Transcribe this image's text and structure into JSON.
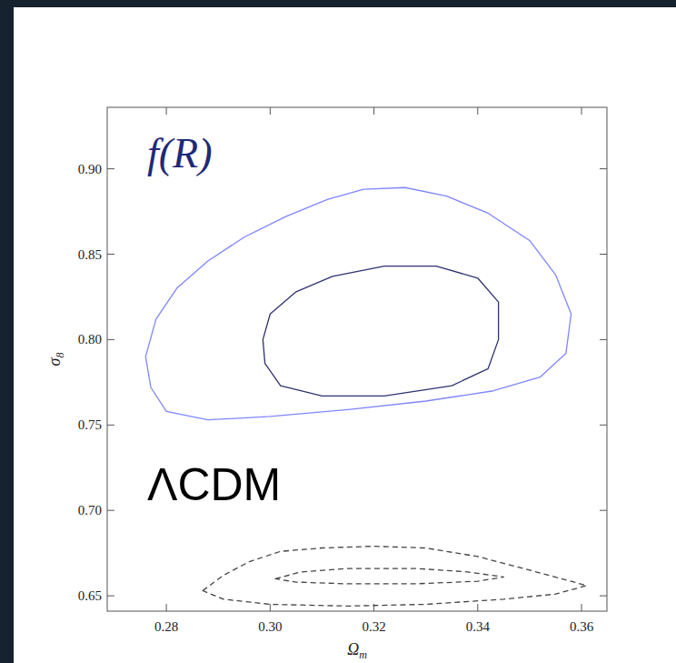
{
  "chart_data": {
    "type": "contour",
    "x_label": "Ωm",
    "y_label": "σ8",
    "xlim": [
      0.2686,
      0.3649
    ],
    "ylim": [
      0.641,
      0.936
    ],
    "xticks": [
      0.28,
      {
        "value": 0.3,
        "label": "0.30"
      },
      0.32,
      0.34,
      0.36
    ],
    "yticks": [
      0.65,
      {
        "value": 0.7,
        "label": "0.70"
      },
      0.75,
      {
        "value": 0.8,
        "label": "0.80"
      },
      0.85,
      {
        "value": 0.9,
        "label": "0.90"
      }
    ],
    "grid": false,
    "series": [
      {
        "name": "f(R)",
        "color": "#1e2a78",
        "line_style": "solid",
        "contours": [
          {
            "color": "#7f86ff",
            "x": [
              0.276,
              0.278,
              0.282,
              0.288,
              0.295,
              0.303,
              0.311,
              0.318,
              0.326,
              0.334,
              0.342,
              0.35,
              0.355,
              0.358,
              0.357,
              0.352,
              0.343,
              0.33,
              0.315,
              0.3,
              0.288,
              0.28,
              0.277
            ],
            "y": [
              0.79,
              0.812,
              0.83,
              0.846,
              0.86,
              0.872,
              0.882,
              0.888,
              0.889,
              0.884,
              0.874,
              0.858,
              0.838,
              0.815,
              0.792,
              0.778,
              0.77,
              0.764,
              0.759,
              0.755,
              0.753,
              0.758,
              0.772
            ]
          },
          {
            "color": "#2f3270",
            "x": [
              0.2986,
              0.3,
              0.305,
              0.312,
              0.322,
              0.332,
              0.34,
              0.344,
              0.344,
              0.342,
              0.335,
              0.322,
              0.31,
              0.302,
              0.299
            ],
            "y": [
              0.8,
              0.815,
              0.828,
              0.837,
              0.843,
              0.843,
              0.836,
              0.822,
              0.8,
              0.783,
              0.773,
              0.767,
              0.767,
              0.773,
              0.786
            ]
          }
        ]
      },
      {
        "name": "ΛCDM",
        "color": "#000000",
        "line_style": "dashed",
        "contours": [
          {
            "color": "#444444",
            "x": [
              0.287,
              0.291,
              0.296,
              0.302,
              0.31,
              0.32,
              0.33,
              0.34,
              0.35,
              0.361,
              0.355,
              0.345,
              0.33,
              0.315,
              0.3,
              0.291
            ],
            "y": [
              0.653,
              0.662,
              0.67,
              0.676,
              0.678,
              0.679,
              0.678,
              0.673,
              0.665,
              0.656,
              0.651,
              0.648,
              0.645,
              0.644,
              0.645,
              0.648
            ]
          },
          {
            "color": "#444444",
            "x": [
              0.301,
              0.306,
              0.315,
              0.328,
              0.338,
              0.345,
              0.34,
              0.328,
              0.315,
              0.305
            ],
            "y": [
              0.66,
              0.664,
              0.666,
              0.666,
              0.664,
              0.661,
              0.6585,
              0.657,
              0.657,
              0.658
            ]
          }
        ]
      }
    ]
  }
}
